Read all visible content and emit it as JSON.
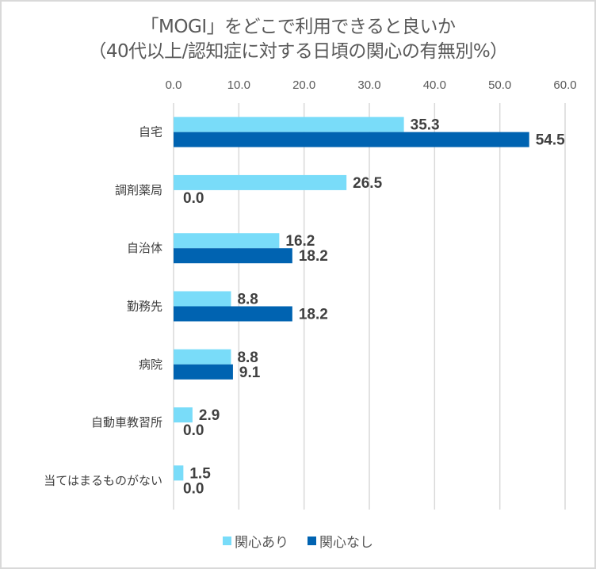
{
  "chart_data": {
    "type": "bar",
    "orientation": "horizontal",
    "title": "「MOGI」をどこで利用できると良いか",
    "subtitle": "（40代以上/認知症に対する日頃の関心の有無別%）",
    "categories": [
      "自宅",
      "調剤薬局",
      "自治体",
      "勤務先",
      "病院",
      "自動車教習所",
      "当てはまるものがない"
    ],
    "series": [
      {
        "name": "関心あり",
        "color": "#79DCF9",
        "values": [
          35.3,
          26.5,
          16.2,
          8.8,
          8.8,
          2.9,
          1.5
        ],
        "labels": [
          "35.3",
          "26.5",
          "16.2",
          "8.8",
          "8.8",
          "2.9",
          "1.5"
        ]
      },
      {
        "name": "関心なし",
        "color": "#0063B1",
        "values": [
          54.5,
          0.0,
          18.2,
          18.2,
          9.1,
          0.0,
          0.0
        ],
        "labels": [
          "54.5",
          "0.0",
          "18.2",
          "18.2",
          "9.1",
          "0.0",
          "0.0"
        ]
      }
    ],
    "xlim": [
      0,
      60
    ],
    "xticks": [
      "0.0",
      "10.0",
      "20.0",
      "30.0",
      "40.0",
      "50.0",
      "60.0"
    ],
    "xtick_values": [
      0,
      10,
      20,
      30,
      40,
      50,
      60
    ],
    "xaxis_position": "top",
    "grid": true,
    "legend": "bottom"
  }
}
